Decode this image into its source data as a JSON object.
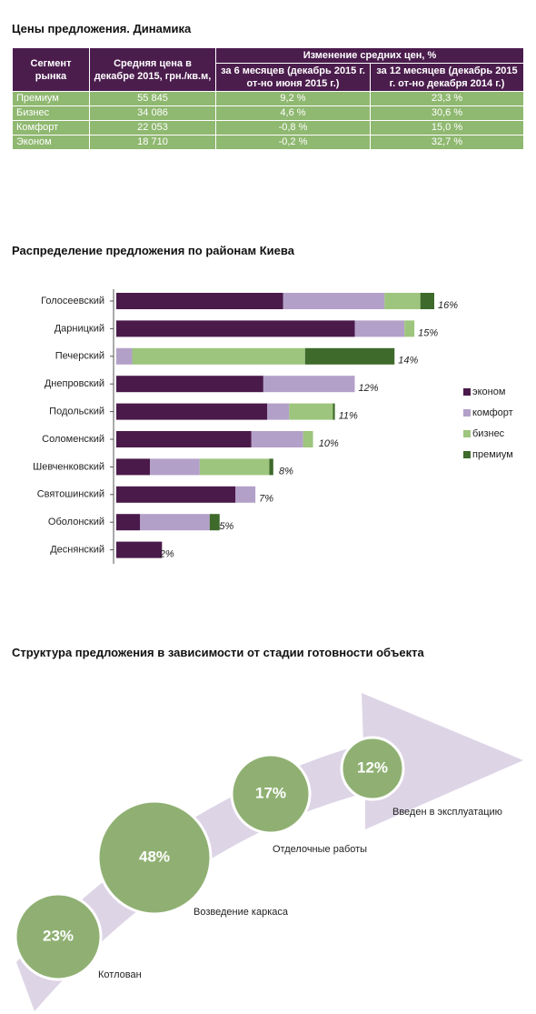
{
  "table": {
    "title": "Цены предложения. Динамика",
    "columns": [
      "Сегмент рынка",
      "Средняя цена в декабре 2015, грн./кв.м,",
      "Изменение средних цен, %",
      "за 6 месяцев (декабрь 2015 г. от-но июня 2015 г.)",
      "за 12 месяцев (декабрь 2015 г. от-но декабря 2014 г.)"
    ],
    "rows": [
      [
        "Премиум",
        "55 845",
        "9,2 %",
        "23,3 %"
      ],
      [
        "Бизнес",
        "34 086",
        "4,6 %",
        "30,6 %"
      ],
      [
        "Комфорт",
        "22 053",
        "-0,8 %",
        "15,0 %"
      ],
      [
        "Эконом",
        "18 710",
        "-0,2 %",
        "32,7 %"
      ]
    ]
  },
  "chart_data": {
    "type": "bar",
    "orientation": "horizontal",
    "stacked": true,
    "title": "Распределение предложения по районам Киева",
    "categories": [
      "Голосеевский",
      "Дарницкий",
      "Печерский",
      "Днепровский",
      "Подольский",
      "Соломенский",
      "Шевченковский",
      "Святошинский",
      "Оболонский",
      "Деснянский"
    ],
    "series": [
      {
        "name": "эконом",
        "color": "#4a1a4a",
        "values": [
          8.4,
          12.0,
          0,
          7.4,
          7.6,
          6.8,
          1.7,
          6.0,
          1.2,
          2.3
        ]
      },
      {
        "name": "комфорт",
        "color": "#b3a0c9",
        "values": [
          5.1,
          2.5,
          0.8,
          4.6,
          1.1,
          2.6,
          2.5,
          1.0,
          3.5,
          0
        ]
      },
      {
        "name": "бизнес",
        "color": "#9dc57d",
        "values": [
          1.8,
          0.5,
          8.7,
          0,
          2.2,
          0.5,
          3.5,
          0,
          0,
          0
        ]
      },
      {
        "name": "премиум",
        "color": "#3e6a2b",
        "values": [
          0.7,
          0,
          4.5,
          0,
          0.1,
          0,
          0.2,
          0,
          0.5,
          0
        ]
      }
    ],
    "totals": [
      16,
      15,
      14,
      12,
      11,
      10,
      8,
      7,
      5,
      2
    ],
    "total_labels": [
      "16%",
      "15%",
      "14%",
      "12%",
      "11%",
      "10%",
      "8%",
      "7%",
      "5%",
      "2%"
    ]
  },
  "stages": {
    "title": "Структура предложения в зависимости от стадии готовности объекта",
    "items": [
      {
        "value": 23,
        "label": "23%",
        "name": "Котлован"
      },
      {
        "value": 48,
        "label": "48%",
        "name": "Возведение каркаса"
      },
      {
        "value": 17,
        "label": "17%",
        "name": "Отделочные работы"
      },
      {
        "value": 12,
        "label": "12%",
        "name": "Введен в эксплуатацию"
      }
    ]
  }
}
